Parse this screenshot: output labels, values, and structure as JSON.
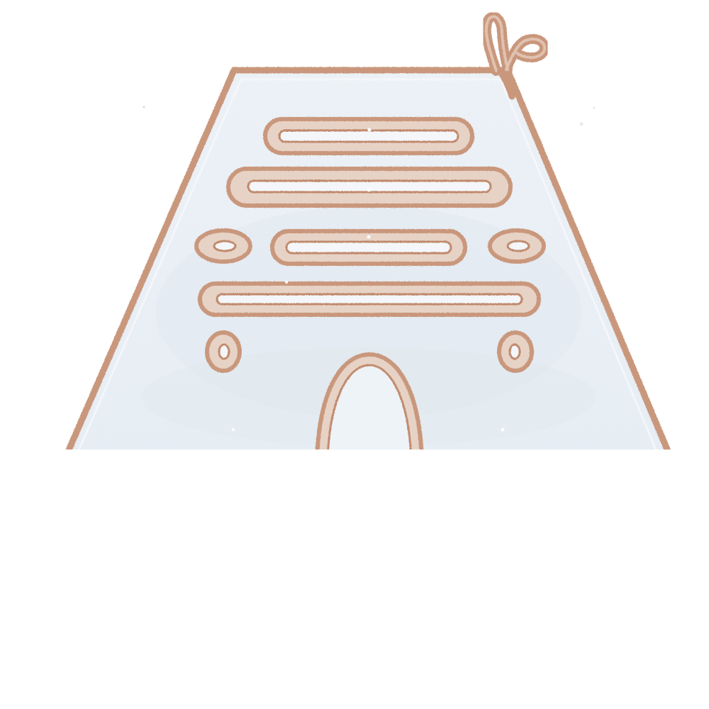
{
  "illustration": {
    "subject": "",
    "palette": {
      "outline": "#c9977b",
      "outline_dark": "#b57f63",
      "fill": "#ecf1f6",
      "fill_shade": "#dde6ee",
      "background": "#ffffff"
    },
    "icon": "temple-facade-icon"
  }
}
